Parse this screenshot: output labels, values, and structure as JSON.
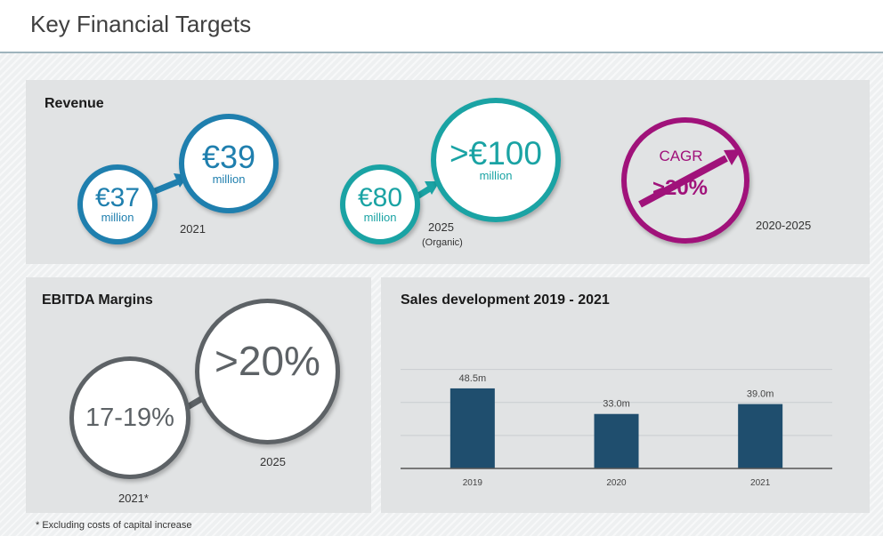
{
  "title": "Key Financial Targets",
  "revenue": {
    "heading": "Revenue",
    "c2021_from": {
      "value": "€37",
      "unit": "million"
    },
    "c2021_to": {
      "value": "€39",
      "unit": "million"
    },
    "label_2021": "2021",
    "c2025_from": {
      "value": "€80",
      "unit": "million"
    },
    "c2025_to": {
      "value": ">€100",
      "unit": "million"
    },
    "label_2025": "2025",
    "label_organic": "(Organic)",
    "cagr": {
      "label": "CAGR",
      "value": ">20%"
    },
    "label_period": "2020-2025"
  },
  "ebitda": {
    "heading": "EBITDA Margins",
    "from_value": "17-19%",
    "to_value": ">20%",
    "label_2025": "2025",
    "label_2021": "2021*"
  },
  "sales": {
    "heading": "Sales development 2019 - 2021"
  },
  "chart_data": {
    "type": "bar",
    "title": "Sales development 2019 - 2021",
    "categories": [
      "2019",
      "2020",
      "2021"
    ],
    "values": [
      48.5,
      33.0,
      39.0
    ],
    "data_labels": [
      "48.5m",
      "33.0m",
      "39.0m"
    ],
    "ylim": [
      0,
      70
    ],
    "grid": true,
    "xlabel": "",
    "ylabel": ""
  },
  "colors": {
    "blue": "#1f7fae",
    "teal": "#1aa3a4",
    "magenta": "#a0127a",
    "grey": "#5d6266",
    "bar": "#1f4e6e"
  },
  "footnote": "* Excluding costs of capital increase"
}
